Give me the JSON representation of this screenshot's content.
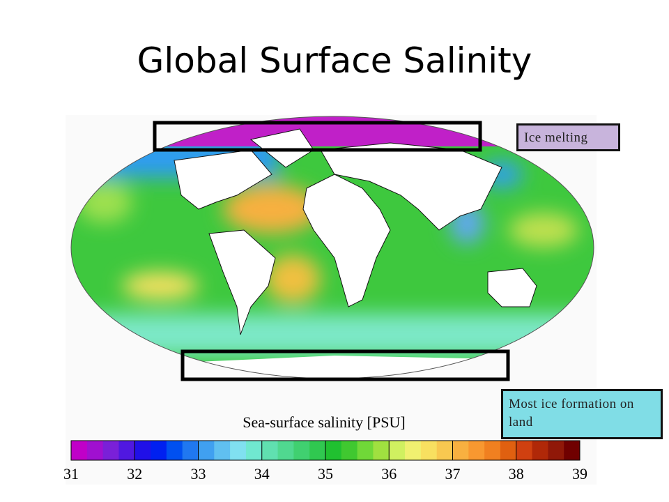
{
  "title": "Global Surface Salinity",
  "map": {
    "colorbar": {
      "label": "Sea-surface salinity [PSU]",
      "range": [
        31,
        39
      ],
      "ticks": [
        31,
        32,
        33,
        34,
        35,
        36,
        37,
        38,
        39
      ]
    }
  },
  "annotations": [
    "Ice melting",
    "Most ice formation on land"
  ]
}
